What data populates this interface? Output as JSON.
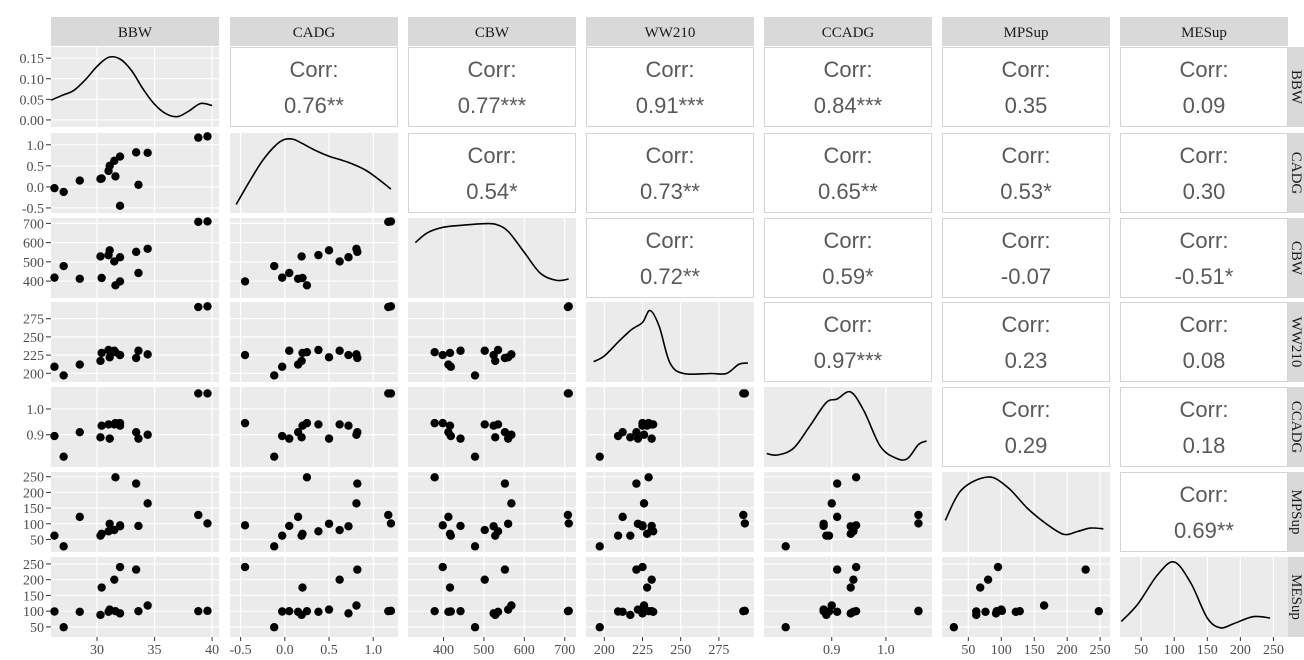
{
  "chart_data": {
    "type": "scatter",
    "description_free": true,
    "variables": [
      "BBW",
      "CADG",
      "CBW",
      "WW210",
      "CCADG",
      "MPSup",
      "MESup"
    ],
    "strip_labels": [
      "BBW",
      "CADG",
      "CBW",
      "WW210",
      "CCADG",
      "MPSup",
      "MESup"
    ],
    "colors": {
      "panel_bg": "#ebebeb",
      "strip_bg": "#d9d9d9",
      "grid": "#ffffff",
      "point": "#000000",
      "corr_text": "#595959",
      "axis_text": "#4d4d4d"
    },
    "axes": {
      "BBW": {
        "range": [
          26.0,
          40.6
        ],
        "ticks": [
          30,
          35,
          40
        ],
        "tick_labels": [
          "30",
          "35",
          "40"
        ],
        "y_ticks": [
          0.0,
          0.05,
          0.1,
          0.15
        ],
        "y_tick_labels": [
          "0.00",
          "0.05",
          "0.10",
          "0.15"
        ],
        "density_range": [
          -0.005,
          0.165
        ]
      },
      "CADG": {
        "range": [
          -0.62,
          1.28
        ],
        "ticks": [
          -0.5,
          0.0,
          0.5,
          1.0
        ],
        "tick_labels": [
          "-0.5",
          "0.0",
          "0.5",
          "1.0"
        ]
      },
      "CBW": {
        "range": [
          312,
          728
        ],
        "ticks": [
          400,
          500,
          600,
          700
        ],
        "tick_labels": [
          "400",
          "500",
          "600",
          "700"
        ]
      },
      "WW210": {
        "range": [
          188,
          298
        ],
        "ticks": [
          200,
          225,
          250,
          275
        ],
        "tick_labels": [
          "200",
          "225",
          "250",
          "275"
        ]
      },
      "CCADG": {
        "range": [
          0.775,
          1.085
        ],
        "ticks": [
          0.9,
          1.0
        ],
        "tick_labels": [
          "0.9",
          "1.0"
        ]
      },
      "MPSup": {
        "range": [
          10,
          265
        ],
        "ticks": [
          50,
          100,
          150,
          200,
          250
        ],
        "tick_labels": [
          "50",
          "100",
          "150",
          "200",
          "250"
        ]
      },
      "MESup": {
        "range": [
          18,
          272
        ],
        "ticks": [
          50,
          100,
          150,
          200,
          250
        ],
        "tick_labels": [
          "50",
          "100",
          "150",
          "200",
          "250"
        ]
      }
    },
    "observations": [
      {
        "BBW": 26.3,
        "CADG": -0.03,
        "CBW": 418,
        "WW210": 209,
        "CCADG": 0.895,
        "MPSup": 62,
        "MESup": 99
      },
      {
        "BBW": 27.1,
        "CADG": -0.12,
        "CBW": 478,
        "WW210": 197,
        "CCADG": 0.815,
        "MPSup": 28,
        "MESup": 49
      },
      {
        "BBW": 28.5,
        "CADG": 0.15,
        "CBW": 412,
        "WW210": 212,
        "CCADG": 0.91,
        "MPSup": 122,
        "MESup": 98
      },
      {
        "BBW": 30.3,
        "CADG": 0.19,
        "CBW": 528,
        "WW210": 217,
        "CCADG": 0.89,
        "MPSup": 62,
        "MESup": 88
      },
      {
        "BBW": 30.4,
        "CADG": 0.2,
        "CBW": 416,
        "WW210": 228,
        "CCADG": 0.935,
        "MPSup": 68,
        "MESup": 175
      },
      {
        "BBW": 31.0,
        "CADG": 0.38,
        "CBW": 535,
        "WW210": 232,
        "CCADG": 0.94,
        "MPSup": 76,
        "MESup": 98
      },
      {
        "BBW": 31.1,
        "CADG": 0.5,
        "CBW": 560,
        "WW210": 222,
        "CCADG": 0.885,
        "MPSup": 100,
        "MESup": 105
      },
      {
        "BBW": 31.5,
        "CADG": 0.62,
        "CBW": 502,
        "WW210": 231,
        "CCADG": 0.94,
        "MPSup": 80,
        "MESup": 200
      },
      {
        "BBW": 31.6,
        "CADG": 0.25,
        "CBW": 378,
        "WW210": 229,
        "CCADG": 0.945,
        "MPSup": 248,
        "MESup": 100
      },
      {
        "BBW": 32.0,
        "CADG": -0.45,
        "CBW": 398,
        "WW210": 225,
        "CCADG": 0.945,
        "MPSup": 95,
        "MESup": 240
      },
      {
        "BBW": 32.0,
        "CADG": 0.72,
        "CBW": 524,
        "WW210": 225,
        "CCADG": 0.935,
        "MPSup": 92,
        "MESup": 93
      },
      {
        "BBW": 33.4,
        "CADG": 0.82,
        "CBW": 552,
        "WW210": 221,
        "CCADG": 0.91,
        "MPSup": 228,
        "MESup": 232
      },
      {
        "BBW": 33.6,
        "CADG": 0.05,
        "CBW": 442,
        "WW210": 231,
        "CCADG": 0.885,
        "MPSup": 93,
        "MESup": 100
      },
      {
        "BBW": 34.4,
        "CADG": 0.81,
        "CBW": 568,
        "WW210": 226,
        "CCADG": 0.9,
        "MPSup": 165,
        "MESup": 118
      },
      {
        "BBW": 38.8,
        "CADG": 1.17,
        "CBW": 708,
        "WW210": 291,
        "CCADG": 1.06,
        "MPSup": 128,
        "MESup": 100
      },
      {
        "BBW": 39.6,
        "CADG": 1.2,
        "CBW": 710,
        "WW210": 292,
        "CCADG": 1.06,
        "MPSup": 101,
        "MESup": 101
      }
    ],
    "correlations": [
      {
        "row": "BBW",
        "col": "CADG",
        "label": "Corr:",
        "value": "0.76**"
      },
      {
        "row": "BBW",
        "col": "CBW",
        "label": "Corr:",
        "value": "0.77***"
      },
      {
        "row": "BBW",
        "col": "WW210",
        "label": "Corr:",
        "value": "0.91***"
      },
      {
        "row": "BBW",
        "col": "CCADG",
        "label": "Corr:",
        "value": "0.84***"
      },
      {
        "row": "BBW",
        "col": "MPSup",
        "label": "Corr:",
        "value": "0.35"
      },
      {
        "row": "BBW",
        "col": "MESup",
        "label": "Corr:",
        "value": "0.09"
      },
      {
        "row": "CADG",
        "col": "CBW",
        "label": "Corr:",
        "value": "0.54*"
      },
      {
        "row": "CADG",
        "col": "WW210",
        "label": "Corr:",
        "value": "0.73**"
      },
      {
        "row": "CADG",
        "col": "CCADG",
        "label": "Corr:",
        "value": "0.65**"
      },
      {
        "row": "CADG",
        "col": "MPSup",
        "label": "Corr:",
        "value": "0.53*"
      },
      {
        "row": "CADG",
        "col": "MESup",
        "label": "Corr:",
        "value": "0.30"
      },
      {
        "row": "CBW",
        "col": "WW210",
        "label": "Corr:",
        "value": "0.72**"
      },
      {
        "row": "CBW",
        "col": "CCADG",
        "label": "Corr:",
        "value": "0.59*"
      },
      {
        "row": "CBW",
        "col": "MPSup",
        "label": "Corr:",
        "value": "-0.07"
      },
      {
        "row": "CBW",
        "col": "MESup",
        "label": "Corr:",
        "value": "-0.51*"
      },
      {
        "row": "WW210",
        "col": "CCADG",
        "label": "Corr:",
        "value": "0.97***"
      },
      {
        "row": "WW210",
        "col": "MPSup",
        "label": "Corr:",
        "value": "0.23"
      },
      {
        "row": "WW210",
        "col": "MESup",
        "label": "Corr:",
        "value": "0.08"
      },
      {
        "row": "CCADG",
        "col": "MPSup",
        "label": "Corr:",
        "value": "0.29"
      },
      {
        "row": "CCADG",
        "col": "MESup",
        "label": "Corr:",
        "value": "0.18"
      },
      {
        "row": "MPSup",
        "col": "MESup",
        "label": "Corr:",
        "value": "0.69**"
      }
    ],
    "densities": {
      "BBW": [
        [
          26.0,
          0.048
        ],
        [
          27.0,
          0.06
        ],
        [
          28.0,
          0.072
        ],
        [
          29.0,
          0.098
        ],
        [
          30.0,
          0.13
        ],
        [
          31.0,
          0.152
        ],
        [
          32.0,
          0.148
        ],
        [
          33.0,
          0.12
        ],
        [
          34.0,
          0.075
        ],
        [
          35.0,
          0.038
        ],
        [
          36.0,
          0.015
        ],
        [
          37.0,
          0.008
        ],
        [
          38.0,
          0.022
        ],
        [
          39.0,
          0.04
        ],
        [
          40.0,
          0.035
        ]
      ],
      "CADG": [
        [
          -0.55,
          0.05
        ],
        [
          -0.4,
          0.38
        ],
        [
          -0.25,
          0.68
        ],
        [
          -0.1,
          0.9
        ],
        [
          0.0,
          0.98
        ],
        [
          0.1,
          0.98
        ],
        [
          0.2,
          0.92
        ],
        [
          0.35,
          0.82
        ],
        [
          0.5,
          0.74
        ],
        [
          0.7,
          0.66
        ],
        [
          0.9,
          0.55
        ],
        [
          1.05,
          0.42
        ],
        [
          1.2,
          0.27
        ]
      ],
      "CBW": [
        [
          330,
          0.72
        ],
        [
          360,
          0.86
        ],
        [
          400,
          0.94
        ],
        [
          450,
          0.97
        ],
        [
          500,
          0.99
        ],
        [
          530,
          0.98
        ],
        [
          560,
          0.88
        ],
        [
          600,
          0.58
        ],
        [
          640,
          0.28
        ],
        [
          680,
          0.18
        ],
        [
          710,
          0.2
        ]
      ],
      "WW210": [
        [
          193,
          0.22
        ],
        [
          200,
          0.3
        ],
        [
          210,
          0.52
        ],
        [
          218,
          0.68
        ],
        [
          225,
          0.78
        ],
        [
          230,
          0.95
        ],
        [
          236,
          0.72
        ],
        [
          243,
          0.2
        ],
        [
          252,
          0.05
        ],
        [
          270,
          0.05
        ],
        [
          280,
          0.05
        ],
        [
          288,
          0.18
        ],
        [
          294,
          0.2
        ]
      ],
      "CCADG": [
        [
          0.78,
          0.12
        ],
        [
          0.8,
          0.1
        ],
        [
          0.83,
          0.2
        ],
        [
          0.86,
          0.52
        ],
        [
          0.89,
          0.85
        ],
        [
          0.91,
          0.9
        ],
        [
          0.935,
          1.0
        ],
        [
          0.96,
          0.72
        ],
        [
          0.99,
          0.22
        ],
        [
          1.02,
          0.05
        ],
        [
          1.04,
          0.05
        ],
        [
          1.06,
          0.25
        ],
        [
          1.075,
          0.3
        ]
      ],
      "MPSup": [
        [
          15,
          0.38
        ],
        [
          40,
          0.82
        ],
        [
          80,
          1.0
        ],
        [
          110,
          0.85
        ],
        [
          140,
          0.55
        ],
        [
          170,
          0.32
        ],
        [
          195,
          0.18
        ],
        [
          215,
          0.22
        ],
        [
          235,
          0.27
        ],
        [
          255,
          0.26
        ]
      ],
      "MESup": [
        [
          20,
          0.15
        ],
        [
          45,
          0.4
        ],
        [
          75,
          0.82
        ],
        [
          100,
          1.0
        ],
        [
          125,
          0.7
        ],
        [
          150,
          0.2
        ],
        [
          170,
          0.06
        ],
        [
          190,
          0.12
        ],
        [
          220,
          0.22
        ],
        [
          245,
          0.2
        ]
      ]
    }
  }
}
